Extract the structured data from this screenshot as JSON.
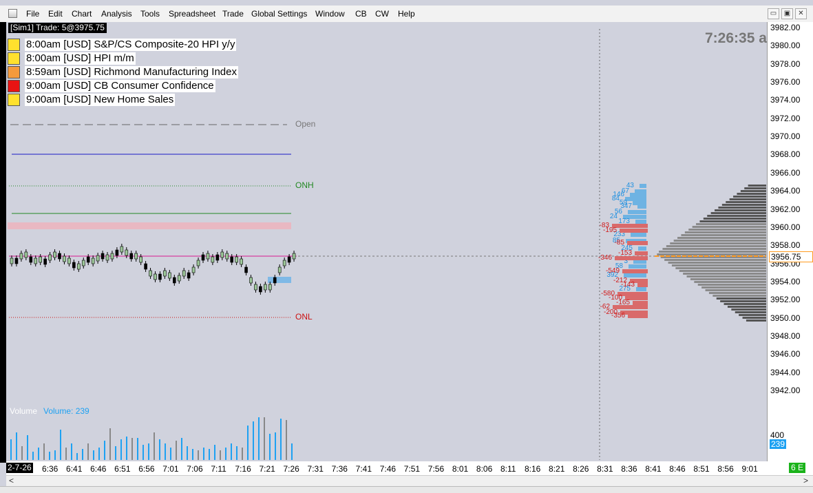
{
  "menu": [
    "File",
    "Edit",
    "Chart",
    "Analysis",
    "Tools",
    "Spreadsheet",
    "Trade",
    "Global Settings",
    "Window",
    "CB",
    "CW",
    "Help"
  ],
  "window_controls": {
    "minimize": "▭",
    "restore": "▣",
    "close": "✕"
  },
  "trade_box": "[Sim1]  Trade: 5@3975.75",
  "clock": "7:26:35 a",
  "news": [
    {
      "text": "8:00am [USD] S&P/CS Composite-20 HPI y/y",
      "color": "#ffe12e"
    },
    {
      "text": "8:00am [USD] HPI m/m",
      "color": "#ffe12e"
    },
    {
      "text": "8:59am [USD] Richmond Manufacturing Index",
      "color": "#f59a3c"
    },
    {
      "text": "9:00am [USD] CB Consumer Confidence",
      "color": "#e81313"
    },
    {
      "text": "9:00am [USD] New Home Sales",
      "color": "#ffe12e"
    }
  ],
  "levels": {
    "open": "Open",
    "onh": "ONH",
    "onl": "ONL"
  },
  "y_axis": {
    "labels": [
      "3982.00",
      "3980.00",
      "3978.00",
      "3976.00",
      "3974.00",
      "3972.00",
      "3970.00",
      "3968.00",
      "3966.00",
      "3964.00",
      "3962.00",
      "3960.00",
      "3958.00",
      "3956.00",
      "3954.00",
      "3952.00",
      "3950.00",
      "3948.00",
      "3946.00",
      "3944.00",
      "3942.00"
    ],
    "current_price": "3956.75",
    "volume_scale": "400",
    "volume_current": "239"
  },
  "x_axis": {
    "date_label": "2-7-26",
    "labels": [
      "6:36",
      "6:41",
      "6:46",
      "6:51",
      "6:56",
      "7:01",
      "7:06",
      "7:11",
      "7:16",
      "7:21",
      "7:26",
      "7:31",
      "7:36",
      "7:41",
      "7:46",
      "7:51",
      "7:56",
      "8:01",
      "8:06",
      "8:11",
      "8:16",
      "8:21",
      "8:26",
      "8:31",
      "8:36",
      "8:41",
      "8:46",
      "8:51",
      "8:56",
      "9:01"
    ],
    "corner_badge": "6 E"
  },
  "volume": {
    "label": "Volume",
    "value_label": "Volume: 239"
  },
  "footprint_blue": [
    "43",
    "67",
    "146",
    "84",
    "347",
    "59",
    "56",
    "24",
    "173",
    "233",
    "85",
    "245",
    "3",
    "58",
    "392",
    "275"
  ],
  "footprint_red": [
    "-83",
    "-195",
    "-85",
    "-153",
    "-346",
    "-549",
    "-212",
    "-143",
    "-580",
    "-100",
    "-165",
    "-62",
    "-200",
    "-356"
  ],
  "colors": {
    "up": "#9ec89a",
    "down": "#000000",
    "vol_up": "#1da1f2",
    "vol_down": "#888888",
    "accent_price": "#ff9a1f"
  }
}
